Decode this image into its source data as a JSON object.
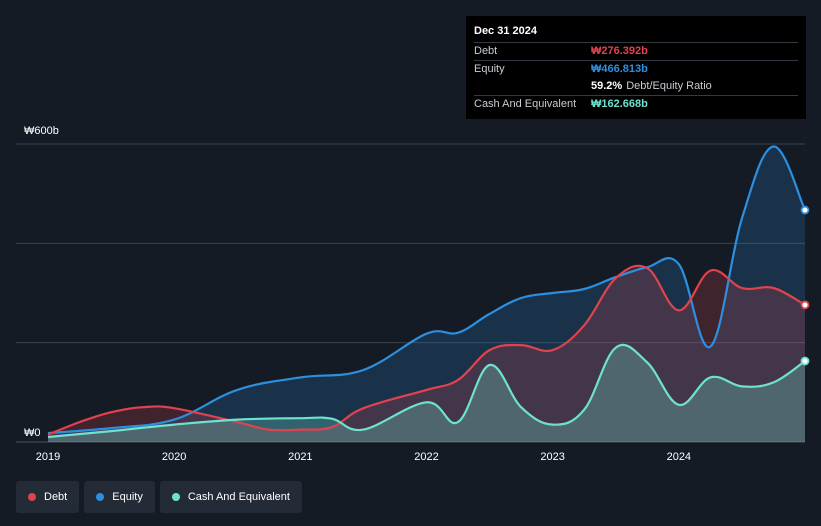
{
  "tooltip": {
    "date": "Dec 31 2024",
    "debt_label": "Debt",
    "debt_value": "₩276.392b",
    "equity_label": "Equity",
    "equity_value": "₩466.813b",
    "ratio_value": "59.2%",
    "ratio_label": "Debt/Equity Ratio",
    "cash_label": "Cash And Equivalent",
    "cash_value": "₩162.668b"
  },
  "legend": {
    "debt": "Debt",
    "equity": "Equity",
    "cash": "Cash And Equivalent"
  },
  "colors": {
    "debt": "#e0434e",
    "equity": "#2d8fe0",
    "cash": "#6ee2cf",
    "background": "#141b24",
    "gridline": "#3a424d"
  },
  "chart_data": {
    "type": "area",
    "y_unit": "₩ billions",
    "ylim": [
      0,
      600
    ],
    "y_tick_labels": [
      {
        "value": 600,
        "label": "₩600b"
      },
      {
        "value": 0,
        "label": "₩0"
      }
    ],
    "y_gridlines": [
      0,
      200,
      400,
      600
    ],
    "x_ticks": [
      2019,
      2020,
      2021,
      2022,
      2023,
      2024
    ],
    "xlim": [
      2019.0,
      2025.0
    ],
    "series": [
      {
        "name": "Equity",
        "points": [
          [
            2019.0,
            18
          ],
          [
            2019.5,
            28
          ],
          [
            2020.0,
            45
          ],
          [
            2020.5,
            105
          ],
          [
            2021.0,
            130
          ],
          [
            2021.5,
            145
          ],
          [
            2022.0,
            218
          ],
          [
            2022.25,
            220
          ],
          [
            2022.5,
            258
          ],
          [
            2022.75,
            290
          ],
          [
            2023.0,
            300
          ],
          [
            2023.25,
            308
          ],
          [
            2023.5,
            332
          ],
          [
            2023.75,
            352
          ],
          [
            2024.0,
            358
          ],
          [
            2024.25,
            192
          ],
          [
            2024.5,
            450
          ],
          [
            2024.75,
            595
          ],
          [
            2025.0,
            467
          ]
        ]
      },
      {
        "name": "Debt",
        "points": [
          [
            2019.0,
            15
          ],
          [
            2019.25,
            40
          ],
          [
            2019.5,
            60
          ],
          [
            2019.75,
            70
          ],
          [
            2020.0,
            68
          ],
          [
            2020.5,
            40
          ],
          [
            2020.75,
            25
          ],
          [
            2021.0,
            25
          ],
          [
            2021.25,
            30
          ],
          [
            2021.5,
            68
          ],
          [
            2022.0,
            105
          ],
          [
            2022.25,
            125
          ],
          [
            2022.5,
            185
          ],
          [
            2022.75,
            195
          ],
          [
            2023.0,
            185
          ],
          [
            2023.25,
            235
          ],
          [
            2023.5,
            330
          ],
          [
            2023.75,
            350
          ],
          [
            2024.0,
            265
          ],
          [
            2024.25,
            345
          ],
          [
            2024.5,
            310
          ],
          [
            2024.75,
            310
          ],
          [
            2025.0,
            276
          ]
        ]
      },
      {
        "name": "Cash And Equivalent",
        "points": [
          [
            2019.0,
            10
          ],
          [
            2019.5,
            22
          ],
          [
            2020.0,
            35
          ],
          [
            2020.5,
            45
          ],
          [
            2021.0,
            48
          ],
          [
            2021.25,
            47
          ],
          [
            2021.5,
            25
          ],
          [
            2022.0,
            80
          ],
          [
            2022.25,
            40
          ],
          [
            2022.5,
            155
          ],
          [
            2022.75,
            70
          ],
          [
            2023.0,
            35
          ],
          [
            2023.25,
            65
          ],
          [
            2023.5,
            190
          ],
          [
            2023.75,
            160
          ],
          [
            2024.0,
            75
          ],
          [
            2024.25,
            130
          ],
          [
            2024.5,
            112
          ],
          [
            2024.75,
            120
          ],
          [
            2025.0,
            163
          ]
        ]
      }
    ]
  }
}
